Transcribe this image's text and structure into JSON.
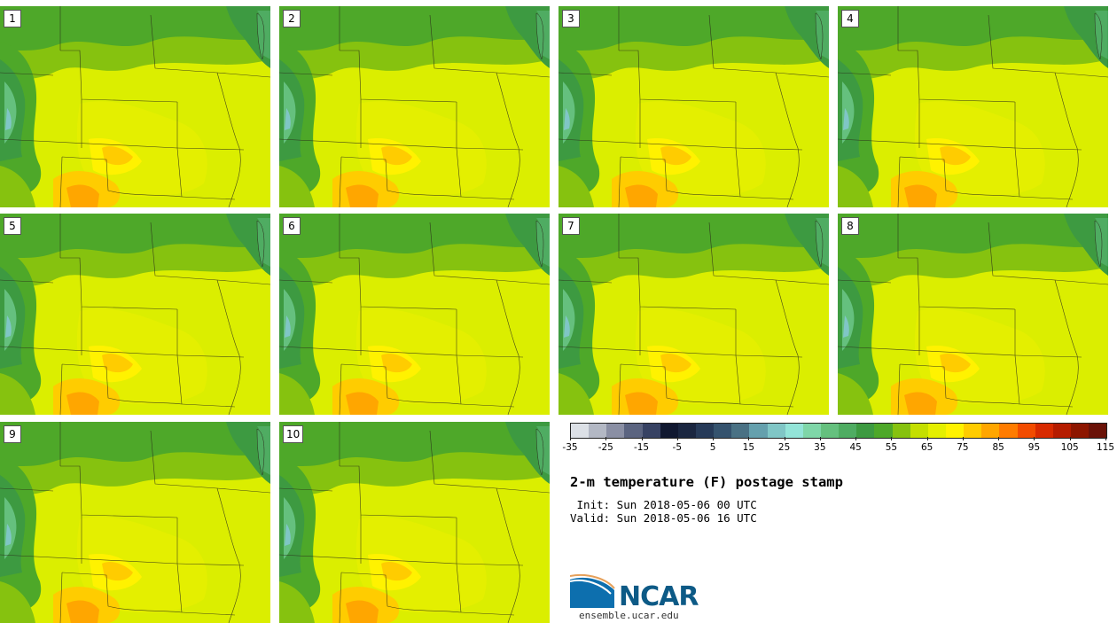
{
  "stamps": [
    {
      "label": "1"
    },
    {
      "label": "2"
    },
    {
      "label": "3"
    },
    {
      "label": "4"
    },
    {
      "label": "5"
    },
    {
      "label": "6"
    },
    {
      "label": "7"
    },
    {
      "label": "8"
    },
    {
      "label": "9"
    },
    {
      "label": "10"
    }
  ],
  "colorbar": {
    "colors": [
      "#dce0e6",
      "#b3b8c4",
      "#8a8fa4",
      "#5b6480",
      "#374263",
      "#101830",
      "#1a2640",
      "#263a58",
      "#35536e",
      "#4a7184",
      "#65a0ad",
      "#80c6c6",
      "#93e4d8",
      "#7fd6a8",
      "#65c07e",
      "#4fac62",
      "#3d9a41",
      "#4ea829",
      "#86c20f",
      "#c4df00",
      "#e4ef00",
      "#fff200",
      "#ffcc00",
      "#ffa600",
      "#ff7c00",
      "#f24c00",
      "#d82a00",
      "#b51c00",
      "#8d1600",
      "#6a1208"
    ],
    "ticks": [
      "-35",
      "-25",
      "-15",
      "-5",
      "5",
      "15",
      "25",
      "35",
      "45",
      "55",
      "65",
      "75",
      "85",
      "95",
      "105",
      "115"
    ]
  },
  "title": "2-m temperature (F) postage stamp",
  "init": " Init: Sun 2018-05-06 00 UTC",
  "valid": "Valid: Sun 2018-05-06 16 UTC",
  "logo_text": "NCAR",
  "site": "ensemble.ucar.edu"
}
